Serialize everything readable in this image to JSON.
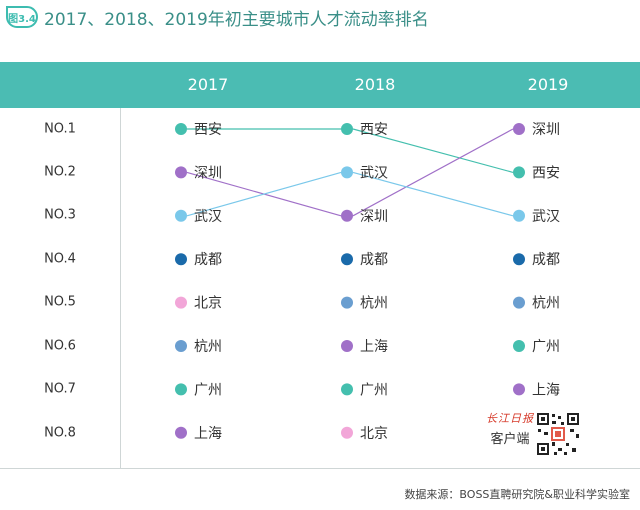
{
  "figure_label": "图3.4",
  "title": "2017、2018、2019年初主要城市人才流动率排名",
  "ranks": [
    "NO.1",
    "NO.2",
    "NO.3",
    "NO.4",
    "NO.5",
    "NO.6",
    "NO.7",
    "NO.8"
  ],
  "source": "数据来源：BOSS直聘研究院&职业科学实验室",
  "logo": {
    "top": "长江日报",
    "bottom": "客户端"
  },
  "colors": {
    "teal": "#44bfae",
    "purple": "#a070c8",
    "lightblue": "#7ac8ea",
    "navy": "#1a6aaa",
    "pink": "#f2a6d8",
    "steelblue": "#6a9ed0",
    "header": "#4bbcb3",
    "title": "#3a8f88"
  },
  "chart_data": {
    "type": "table",
    "title": "2017、2018、2019年初主要城市人才流动率排名",
    "years": [
      "2017",
      "2018",
      "2019"
    ],
    "rankings": {
      "2017": [
        "西安",
        "深圳",
        "武汉",
        "成都",
        "北京",
        "杭州",
        "广州",
        "上海"
      ],
      "2018": [
        "西安",
        "武汉",
        "深圳",
        "成都",
        "杭州",
        "上海",
        "广州",
        "北京"
      ],
      "2019": [
        "深圳",
        "西安",
        "武汉",
        "成都",
        "杭州",
        "广州",
        "上海"
      ]
    },
    "city_colors": {
      "西安": "#44bfae",
      "深圳": "#a070c8",
      "武汉": "#7ac8ea",
      "成都": "#1a6aaa",
      "北京": "#f2a6d8",
      "杭州": "#6a9ed0",
      "广州": "#44bfae",
      "上海": "#a070c8"
    },
    "connectors": [
      {
        "city": "西安",
        "from": [
          "2017",
          1
        ],
        "to": [
          "2018",
          1
        ]
      },
      {
        "city": "深圳",
        "from": [
          "2017",
          2
        ],
        "to": [
          "2018",
          3
        ]
      },
      {
        "city": "武汉",
        "from": [
          "2017",
          3
        ],
        "to": [
          "2018",
          2
        ]
      },
      {
        "city": "西安",
        "from": [
          "2018",
          1
        ],
        "to": [
          "2019",
          2
        ]
      },
      {
        "city": "深圳",
        "from": [
          "2018",
          3
        ],
        "to": [
          "2019",
          1
        ]
      },
      {
        "city": "武汉",
        "from": [
          "2018",
          2
        ],
        "to": [
          "2019",
          3
        ]
      }
    ]
  }
}
